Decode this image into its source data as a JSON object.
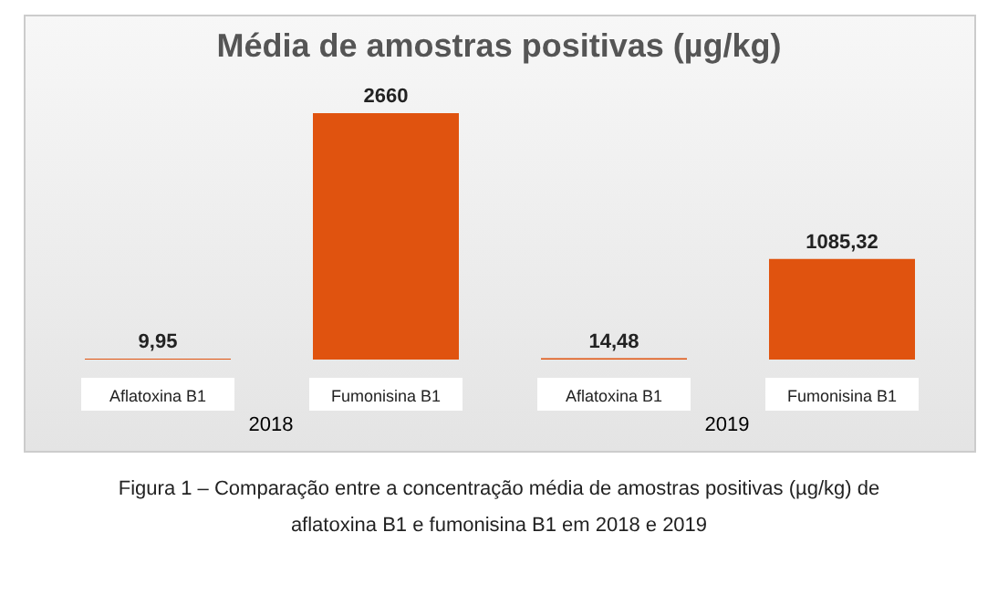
{
  "chart_data": {
    "type": "bar",
    "title": "Média de amostras positivas (µg/kg)",
    "categories": [
      "Aflatoxina B1",
      "Fumonisina B1",
      "Aflatoxina B1",
      "Fumonisina B1"
    ],
    "values": [
      9.95,
      2660,
      14.48,
      1085.32
    ],
    "value_labels": [
      "9,95",
      "2660",
      "14,48",
      "1085,32"
    ],
    "color": "#e0530f",
    "annotations": [
      "2018",
      "2019",
      "Figura 1 – Comparação entre a concentração média de amostras positivas (µg/kg) de aflatoxina B1 e fumonisina B1 em 2018 e 2019"
    ]
  }
}
